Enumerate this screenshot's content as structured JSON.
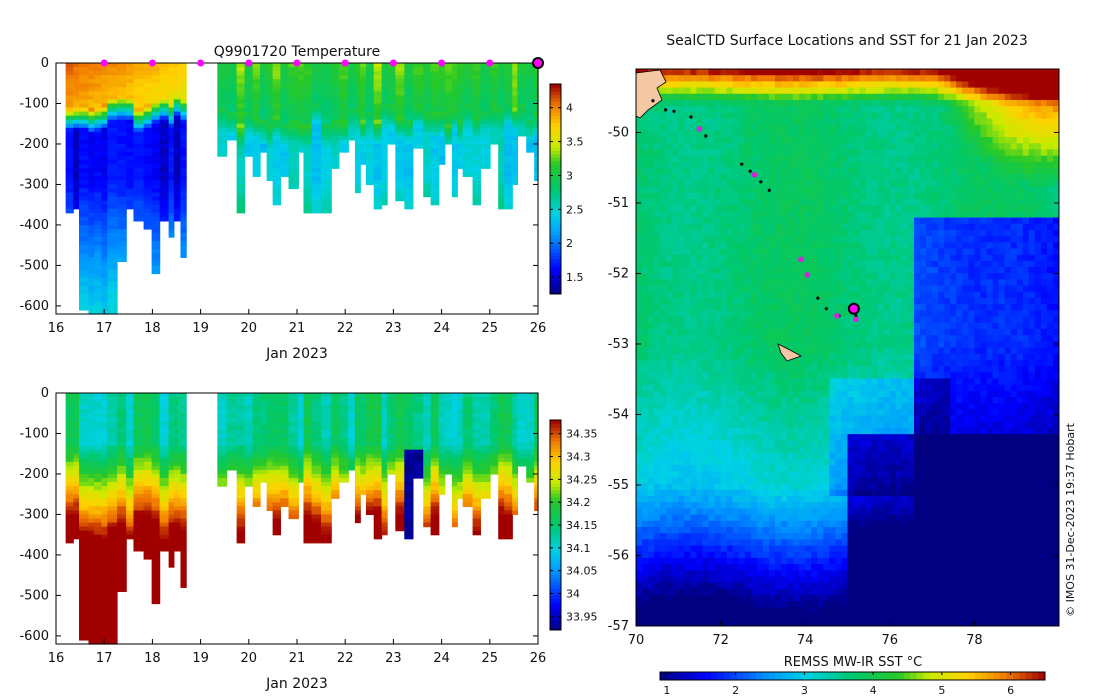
{
  "figure": {
    "left_title": "Q9901720  Temperature",
    "right_title": "SealCTD Surface Locations and SST for 21 Jan 2023",
    "credit": "© IMOS 31-Dec-2023 19:37 Hobart"
  },
  "chart_data": [
    {
      "type": "heatmap",
      "name": "temperature-section",
      "title": "Q9901720  Temperature",
      "xlabel": "Jan 2023",
      "ylabel": "",
      "xlim": [
        16,
        26
      ],
      "ylim": [
        -620,
        0
      ],
      "xticks": [
        "16",
        "17",
        "18",
        "19",
        "20",
        "21",
        "22",
        "23",
        "24",
        "25",
        "26"
      ],
      "yticks": [
        "0",
        "-100",
        "-200",
        "-300",
        "-400",
        "-500",
        "-600"
      ],
      "colorbar": {
        "ticks": [
          "1.5",
          "2",
          "2.5",
          "3",
          "3.5",
          "4"
        ],
        "range": [
          1.25,
          4.35
        ]
      },
      "surface_markers_days": [
        17,
        18,
        19,
        20,
        21,
        22,
        23,
        24,
        25
      ],
      "current_position_day": 26
    },
    {
      "type": "heatmap",
      "name": "salinity-section",
      "title": "",
      "xlabel": "Jan 2023",
      "ylabel": "",
      "xlim": [
        16,
        26
      ],
      "ylim": [
        -620,
        0
      ],
      "xticks": [
        "16",
        "17",
        "18",
        "19",
        "20",
        "21",
        "22",
        "23",
        "24",
        "25",
        "26"
      ],
      "yticks": [
        "0",
        "-100",
        "-200",
        "-300",
        "-400",
        "-500",
        "-600"
      ],
      "colorbar": {
        "ticks": [
          "33.95",
          "34",
          "34.05",
          "34.1",
          "34.15",
          "34.2",
          "34.25",
          "34.3",
          "34.35"
        ],
        "range": [
          33.92,
          34.38
        ]
      }
    },
    {
      "type": "heatmap",
      "name": "sst-map",
      "title": "SealCTD Surface Locations and SST for 21 Jan 2023",
      "xlabel": "REMSS MW-IR SST °C",
      "ylabel": "",
      "xlim": [
        70,
        80
      ],
      "ylim": [
        -57,
        -49.1
      ],
      "xticks": [
        "70",
        "72",
        "74",
        "76",
        "78"
      ],
      "yticks": [
        "-50",
        "-51",
        "-52",
        "-53",
        "-54",
        "-55",
        "-56",
        "-57"
      ],
      "colorbar": {
        "ticks": [
          "1",
          "2",
          "3",
          "4",
          "5",
          "6"
        ],
        "range": [
          0.9,
          6.5
        ]
      },
      "track_points": [
        [
          70.4,
          -49.55
        ],
        [
          70.7,
          -49.68
        ],
        [
          70.9,
          -49.7
        ],
        [
          71.3,
          -49.78
        ],
        [
          71.65,
          -50.05
        ],
        [
          72.5,
          -50.45
        ],
        [
          72.7,
          -50.55
        ],
        [
          72.95,
          -50.7
        ],
        [
          73.15,
          -50.82
        ],
        [
          74.3,
          -52.35
        ],
        [
          74.5,
          -52.5
        ],
        [
          74.8,
          -52.6
        ],
        [
          75.2,
          -52.6
        ]
      ],
      "surface_points": [
        [
          71.5,
          -49.95
        ],
        [
          72.8,
          -50.6
        ],
        [
          73.9,
          -51.8
        ],
        [
          74.05,
          -52.02
        ],
        [
          74.75,
          -52.6
        ],
        [
          75.2,
          -52.65
        ]
      ],
      "current_position": [
        75.15,
        -52.5
      ]
    }
  ]
}
